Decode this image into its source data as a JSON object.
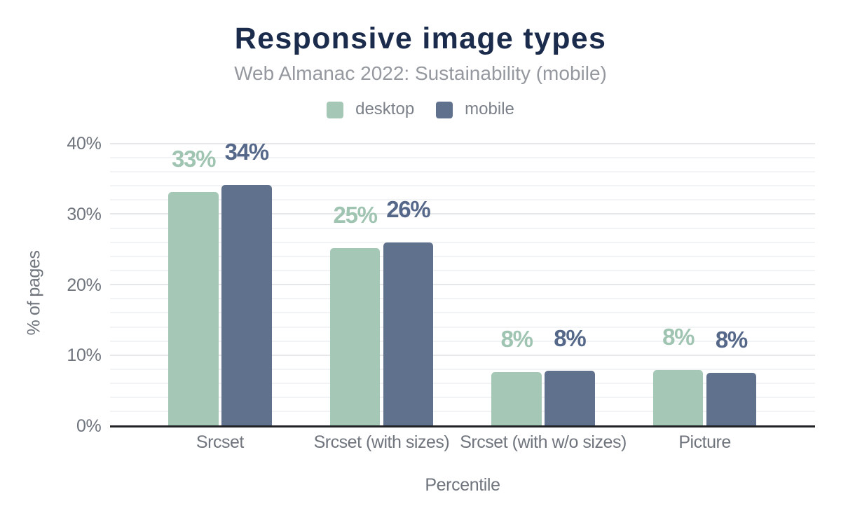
{
  "chart": {
    "title": "Responsive image types",
    "subtitle": "Web Almanac 2022: Sustainability (mobile)",
    "x_axis_title": "Percentile",
    "y_axis_title": "% of pages",
    "background_color": "#ffffff",
    "title_color": "#1b2b4b",
    "subtitle_color": "#95999f",
    "axis_text_color": "#6f747d",
    "legend_text_color": "#7c8189",
    "axis_line_color": "#202225",
    "major_gridline_color": "#e6e7e9",
    "minor_gridline_color": "#f2f3f4"
  },
  "chart_data": {
    "type": "bar",
    "title": "Responsive image types",
    "subtitle": "Web Almanac 2022: Sustainability (mobile)",
    "xlabel": "Percentile",
    "ylabel": "% of pages",
    "categories": [
      "Srcset",
      "Srcset (with sizes)",
      "Srcset (with w/o sizes)",
      "Picture"
    ],
    "series": [
      {
        "name": "desktop",
        "color": "#a5c8b6",
        "label_color": "#9fc4b1",
        "values": [
          33.1,
          25.2,
          7.6,
          7.9
        ],
        "labels": [
          "33%",
          "25%",
          "8%",
          "8%"
        ]
      },
      {
        "name": "mobile",
        "color": "#5f718c",
        "label_color": "#55688a",
        "values": [
          34.1,
          26.0,
          7.75,
          7.5
        ],
        "labels": [
          "34%",
          "26%",
          "8%",
          "8%"
        ]
      }
    ],
    "ylim": [
      0,
      40
    ],
    "yticks": [
      {
        "value": 0,
        "label": "0%"
      },
      {
        "value": 10,
        "label": "10%"
      },
      {
        "value": 20,
        "label": "20%"
      },
      {
        "value": 30,
        "label": "30%"
      },
      {
        "value": 40,
        "label": "40%"
      }
    ],
    "grid": {
      "major_step": 10,
      "minor_step": 2,
      "minor_on": true
    },
    "legend_position": "top"
  }
}
